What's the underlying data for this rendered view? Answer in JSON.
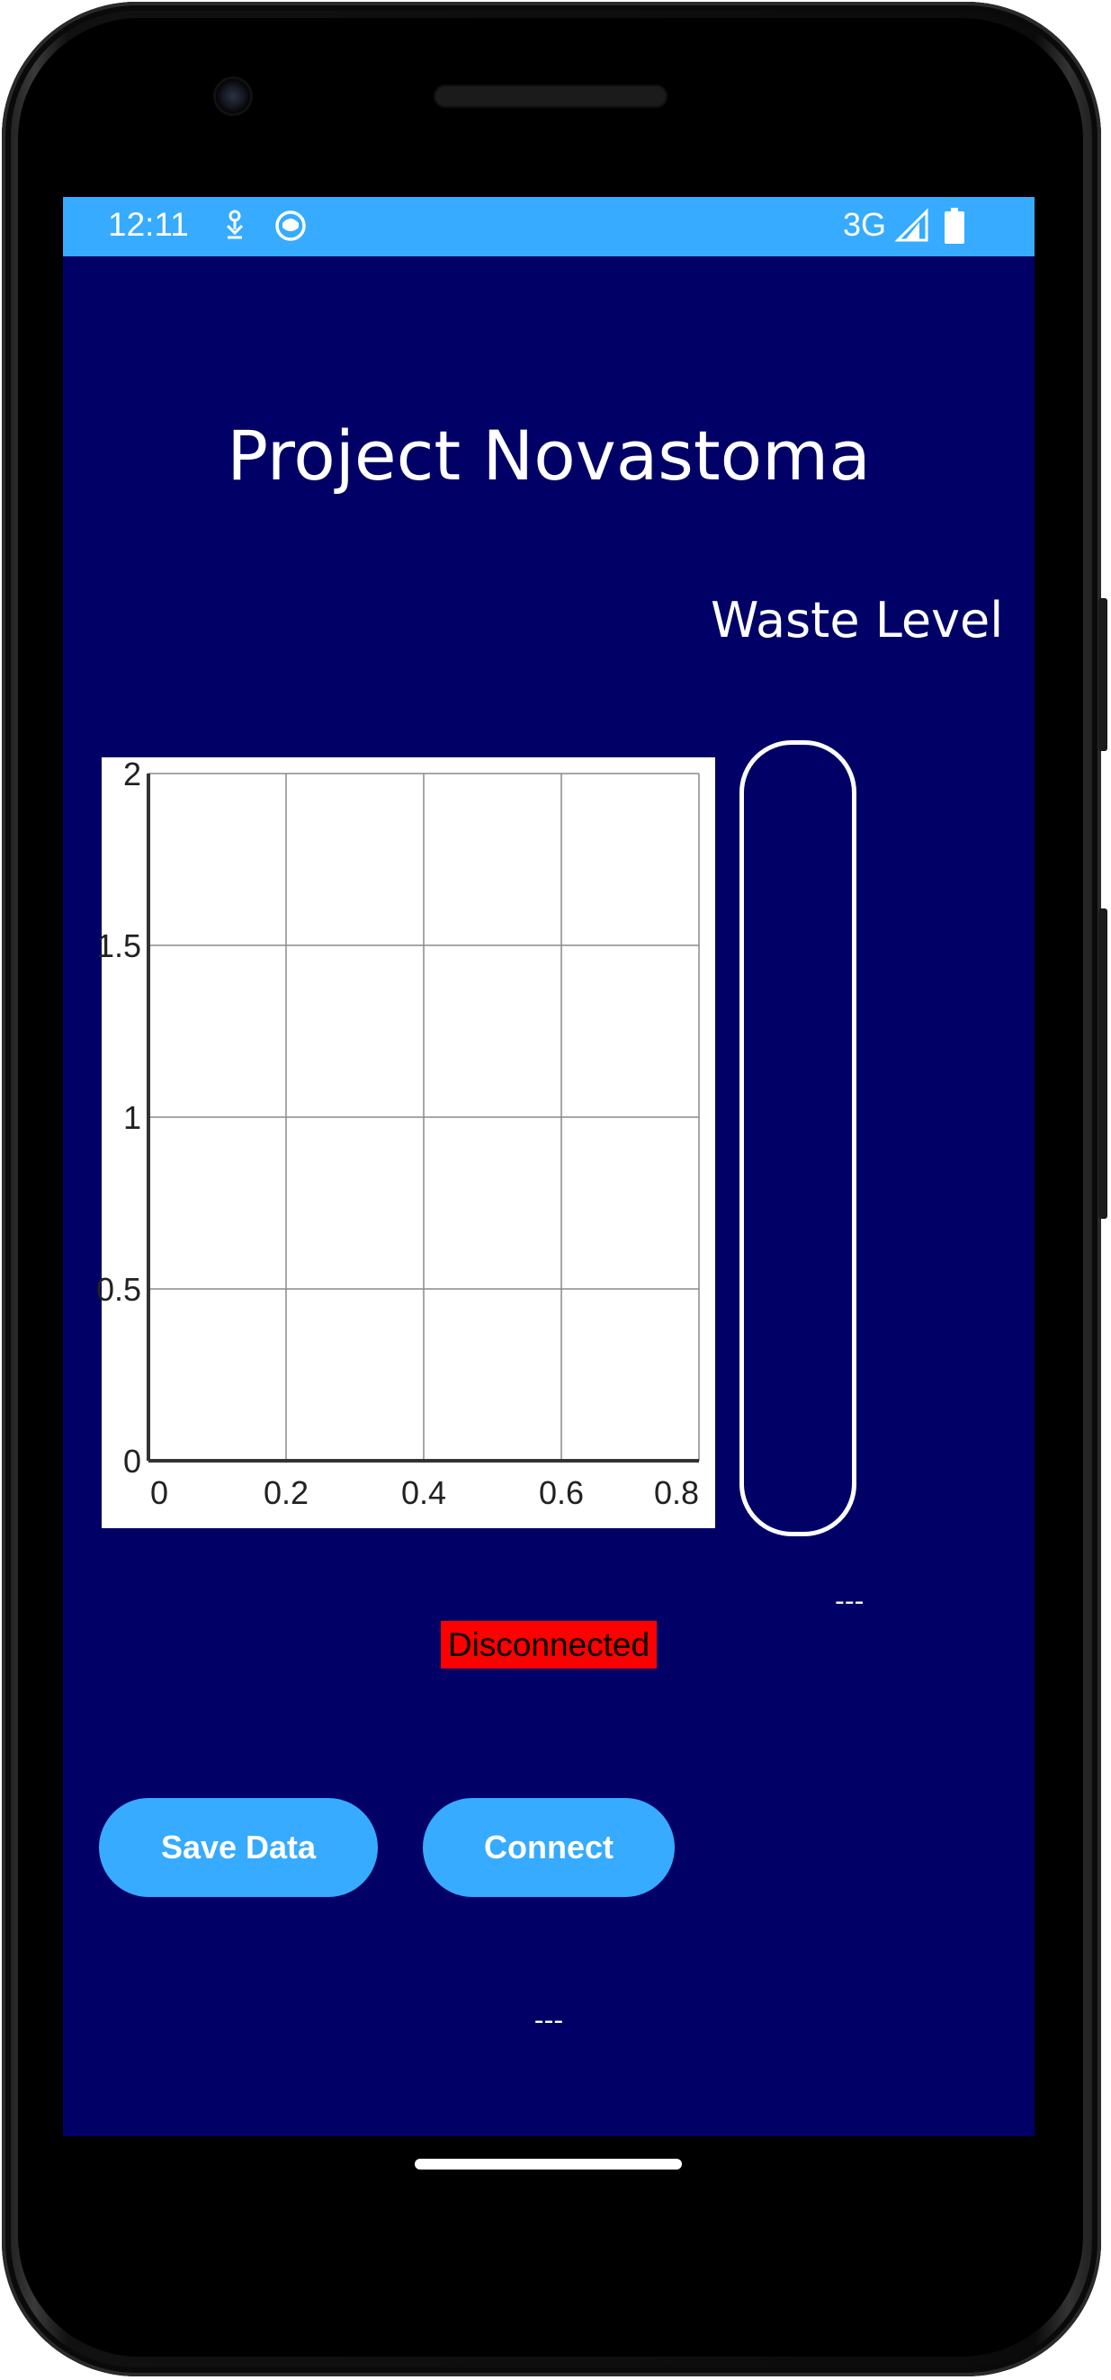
{
  "status_bar": {
    "time": "12:11",
    "network": "3G",
    "icons": [
      "download-notification-icon",
      "app-notification-icon",
      "signal-icon",
      "battery-icon"
    ]
  },
  "app": {
    "title": "Project Novastoma",
    "waste_label": "Waste Level",
    "waste_reading": "---",
    "waste_level_fraction": 0,
    "connection_status": "Disconnected",
    "bottom_reading": "---"
  },
  "buttons": {
    "save_label": "Save Data",
    "connect_label": "Connect"
  },
  "colors": {
    "background": "#000066",
    "accent": "#36abff",
    "status_disconnected": "#ff0000"
  },
  "chart_data": {
    "type": "line",
    "title": "",
    "xlabel": "",
    "ylabel": "",
    "xlim": [
      0,
      0.8
    ],
    "ylim": [
      0,
      2
    ],
    "x_ticks": [
      "0",
      "0.2",
      "0.4",
      "0.6",
      "0.8"
    ],
    "y_ticks": [
      "0",
      "0.5",
      "1",
      "1.5",
      "2"
    ],
    "grid": true,
    "series": []
  }
}
